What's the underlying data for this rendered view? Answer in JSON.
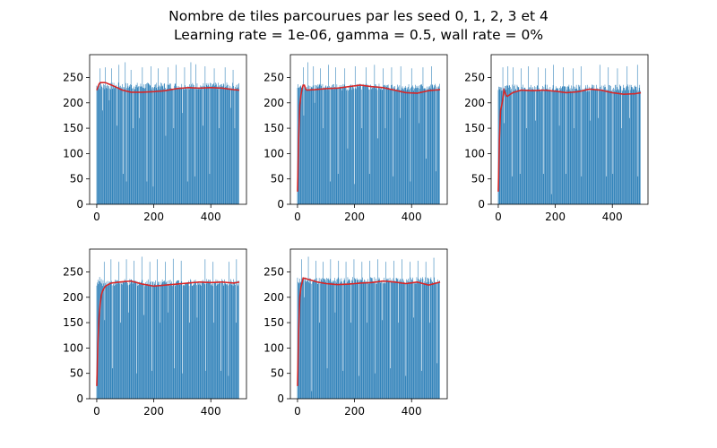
{
  "figure": {
    "title_line1": "Nombre de tiles parcourues par les seed 0, 1, 2, 3 et 4",
    "title_line2": "Learning rate = 1e-06, gamma = 0.5, wall rate = 0%"
  },
  "colors": {
    "bar": "#1f77b4",
    "line": "#d62728",
    "axis": "#000000"
  },
  "chart_data": [
    {
      "type": "bar",
      "seed": 0,
      "xlim": [
        -25,
        525
      ],
      "ylim": [
        0,
        295
      ],
      "xticks": [
        0,
        200,
        400
      ],
      "yticks": [
        0,
        50,
        100,
        150,
        200,
        250
      ],
      "bar_base": 232,
      "dips": [
        [
          20,
          185
        ],
        [
          44,
          205
        ],
        [
          70,
          155
        ],
        [
          92,
          60
        ],
        [
          104,
          45
        ],
        [
          128,
          150
        ],
        [
          150,
          170
        ],
        [
          176,
          45
        ],
        [
          198,
          35
        ],
        [
          242,
          135
        ],
        [
          270,
          150
        ],
        [
          300,
          180
        ],
        [
          318,
          45
        ],
        [
          344,
          55
        ],
        [
          372,
          155
        ],
        [
          396,
          60
        ],
        [
          430,
          150
        ],
        [
          470,
          190
        ],
        [
          484,
          150
        ]
      ],
      "peaks": [
        [
          12,
          268
        ],
        [
          30,
          270
        ],
        [
          52,
          268
        ],
        [
          78,
          275
        ],
        [
          100,
          280
        ],
        [
          120,
          265
        ],
        [
          160,
          270
        ],
        [
          190,
          272
        ],
        [
          216,
          268
        ],
        [
          250,
          270
        ],
        [
          278,
          275
        ],
        [
          308,
          270
        ],
        [
          330,
          280
        ],
        [
          348,
          276
        ],
        [
          380,
          272
        ],
        [
          412,
          268
        ],
        [
          450,
          270
        ],
        [
          478,
          265
        ]
      ],
      "moving_avg": [
        [
          0,
          225
        ],
        [
          10,
          240
        ],
        [
          30,
          240
        ],
        [
          60,
          233
        ],
        [
          90,
          225
        ],
        [
          120,
          221
        ],
        [
          160,
          221
        ],
        [
          200,
          222
        ],
        [
          240,
          224
        ],
        [
          280,
          228
        ],
        [
          320,
          230
        ],
        [
          360,
          229
        ],
        [
          400,
          230
        ],
        [
          440,
          229
        ],
        [
          480,
          226
        ],
        [
          500,
          225
        ]
      ]
    },
    {
      "type": "bar",
      "seed": 1,
      "xlim": [
        -25,
        525
      ],
      "ylim": [
        0,
        295
      ],
      "xticks": [
        0,
        200,
        400
      ],
      "yticks": [
        0,
        50,
        100,
        150,
        200,
        250
      ],
      "bar_base": 230,
      "dips": [
        [
          3,
          20
        ],
        [
          22,
          175
        ],
        [
          60,
          200
        ],
        [
          90,
          150
        ],
        [
          114,
          45
        ],
        [
          142,
          60
        ],
        [
          176,
          110
        ],
        [
          200,
          40
        ],
        [
          226,
          150
        ],
        [
          252,
          60
        ],
        [
          282,
          130
        ],
        [
          308,
          150
        ],
        [
          336,
          55
        ],
        [
          360,
          170
        ],
        [
          396,
          45
        ],
        [
          426,
          160
        ],
        [
          452,
          90
        ],
        [
          486,
          65
        ]
      ],
      "peaks": [
        [
          20,
          270
        ],
        [
          36,
          280
        ],
        [
          56,
          272
        ],
        [
          80,
          268
        ],
        [
          108,
          275
        ],
        [
          134,
          270
        ],
        [
          166,
          268
        ],
        [
          202,
          272
        ],
        [
          240,
          270
        ],
        [
          270,
          275
        ],
        [
          300,
          268
        ],
        [
          330,
          270
        ],
        [
          362,
          272
        ],
        [
          400,
          268
        ],
        [
          440,
          270
        ],
        [
          470,
          272
        ]
      ],
      "moving_avg": [
        [
          0,
          25
        ],
        [
          6,
          185
        ],
        [
          14,
          225
        ],
        [
          22,
          238
        ],
        [
          30,
          225
        ],
        [
          60,
          226
        ],
        [
          100,
          228
        ],
        [
          140,
          229
        ],
        [
          180,
          232
        ],
        [
          220,
          235
        ],
        [
          260,
          232
        ],
        [
          300,
          230
        ],
        [
          340,
          225
        ],
        [
          380,
          220
        ],
        [
          420,
          219
        ],
        [
          460,
          224
        ],
        [
          500,
          226
        ]
      ]
    },
    {
      "type": "bar",
      "seed": 2,
      "xlim": [
        -25,
        525
      ],
      "ylim": [
        0,
        295
      ],
      "xticks": [
        0,
        200,
        400
      ],
      "yticks": [
        0,
        50,
        100,
        150,
        200,
        250
      ],
      "bar_base": 228,
      "dips": [
        [
          3,
          25
        ],
        [
          20,
          160
        ],
        [
          48,
          55
        ],
        [
          76,
          60
        ],
        [
          100,
          150
        ],
        [
          130,
          165
        ],
        [
          158,
          60
        ],
        [
          186,
          20
        ],
        [
          214,
          155
        ],
        [
          238,
          60
        ],
        [
          266,
          150
        ],
        [
          292,
          55
        ],
        [
          322,
          165
        ],
        [
          350,
          170
        ],
        [
          378,
          55
        ],
        [
          402,
          60
        ],
        [
          432,
          150
        ],
        [
          460,
          170
        ],
        [
          490,
          55
        ]
      ],
      "peaks": [
        [
          16,
          270
        ],
        [
          34,
          272
        ],
        [
          52,
          270
        ],
        [
          80,
          268
        ],
        [
          106,
          272
        ],
        [
          140,
          270
        ],
        [
          166,
          268
        ],
        [
          194,
          275
        ],
        [
          228,
          270
        ],
        [
          262,
          268
        ],
        [
          290,
          272
        ],
        [
          322,
          270
        ],
        [
          356,
          275
        ],
        [
          386,
          270
        ],
        [
          418,
          268
        ],
        [
          452,
          272
        ],
        [
          488,
          275
        ]
      ],
      "moving_avg": [
        [
          0,
          25
        ],
        [
          6,
          180
        ],
        [
          14,
          200
        ],
        [
          20,
          225
        ],
        [
          30,
          212
        ],
        [
          50,
          220
        ],
        [
          80,
          225
        ],
        [
          120,
          224
        ],
        [
          160,
          225
        ],
        [
          200,
          223
        ],
        [
          240,
          220
        ],
        [
          280,
          222
        ],
        [
          320,
          227
        ],
        [
          360,
          225
        ],
        [
          400,
          220
        ],
        [
          440,
          217
        ],
        [
          480,
          218
        ],
        [
          500,
          220
        ]
      ]
    },
    {
      "type": "bar",
      "seed": 3,
      "xlim": [
        -25,
        525
      ],
      "ylim": [
        0,
        295
      ],
      "xticks": [
        0,
        200,
        400
      ],
      "yticks": [
        0,
        50,
        100,
        150,
        200,
        250
      ],
      "bar_base": 228,
      "dips": [
        [
          3,
          25
        ],
        [
          28,
          155
        ],
        [
          56,
          60
        ],
        [
          84,
          150
        ],
        [
          112,
          170
        ],
        [
          140,
          50
        ],
        [
          166,
          165
        ],
        [
          194,
          55
        ],
        [
          222,
          150
        ],
        [
          250,
          170
        ],
        [
          272,
          60
        ],
        [
          300,
          50
        ],
        [
          326,
          150
        ],
        [
          352,
          160
        ],
        [
          382,
          55
        ],
        [
          410,
          150
        ],
        [
          436,
          55
        ],
        [
          462,
          45
        ],
        [
          488,
          150
        ]
      ],
      "peaks": [
        [
          10,
          240
        ],
        [
          26,
          270
        ],
        [
          50,
          275
        ],
        [
          78,
          270
        ],
        [
          104,
          275
        ],
        [
          130,
          272
        ],
        [
          158,
          280
        ],
        [
          186,
          270
        ],
        [
          212,
          275
        ],
        [
          240,
          270
        ],
        [
          268,
          276
        ],
        [
          296,
          272
        ],
        [
          326,
          270
        ],
        [
          352,
          268
        ],
        [
          380,
          275
        ],
        [
          408,
          270
        ],
        [
          436,
          272
        ],
        [
          464,
          270
        ],
        [
          490,
          275
        ]
      ],
      "moving_avg": [
        [
          0,
          25
        ],
        [
          4,
          110
        ],
        [
          8,
          160
        ],
        [
          14,
          200
        ],
        [
          20,
          212
        ],
        [
          30,
          222
        ],
        [
          50,
          228
        ],
        [
          80,
          230
        ],
        [
          120,
          232
        ],
        [
          160,
          226
        ],
        [
          200,
          222
        ],
        [
          240,
          224
        ],
        [
          280,
          226
        ],
        [
          320,
          228
        ],
        [
          360,
          230
        ],
        [
          400,
          229
        ],
        [
          440,
          230
        ],
        [
          480,
          228
        ],
        [
          500,
          230
        ]
      ]
    },
    {
      "type": "bar",
      "seed": 4,
      "xlim": [
        -25,
        525
      ],
      "ylim": [
        0,
        295
      ],
      "xticks": [
        0,
        200,
        400
      ],
      "yticks": [
        0,
        50,
        100,
        150,
        200,
        250
      ],
      "bar_base": 232,
      "dips": [
        [
          3,
          25
        ],
        [
          24,
          200
        ],
        [
          50,
          15
        ],
        [
          78,
          150
        ],
        [
          104,
          60
        ],
        [
          132,
          170
        ],
        [
          160,
          55
        ],
        [
          188,
          150
        ],
        [
          216,
          45
        ],
        [
          244,
          150
        ],
        [
          272,
          50
        ],
        [
          298,
          155
        ],
        [
          326,
          60
        ],
        [
          354,
          150
        ],
        [
          380,
          45
        ],
        [
          408,
          160
        ],
        [
          436,
          55
        ],
        [
          464,
          150
        ],
        [
          490,
          70
        ]
      ],
      "peaks": [
        [
          14,
          275
        ],
        [
          38,
          280
        ],
        [
          64,
          272
        ],
        [
          90,
          270
        ],
        [
          116,
          275
        ],
        [
          144,
          272
        ],
        [
          170,
          270
        ],
        [
          198,
          275
        ],
        [
          226,
          270
        ],
        [
          254,
          272
        ],
        [
          282,
          275
        ],
        [
          310,
          270
        ],
        [
          338,
          272
        ],
        [
          366,
          275
        ],
        [
          394,
          270
        ],
        [
          422,
          272
        ],
        [
          450,
          270
        ],
        [
          478,
          278
        ]
      ],
      "moving_avg": [
        [
          0,
          25
        ],
        [
          6,
          190
        ],
        [
          12,
          220
        ],
        [
          20,
          238
        ],
        [
          40,
          235
        ],
        [
          70,
          230
        ],
        [
          100,
          227
        ],
        [
          140,
          225
        ],
        [
          180,
          226
        ],
        [
          220,
          228
        ],
        [
          260,
          229
        ],
        [
          300,
          232
        ],
        [
          340,
          230
        ],
        [
          380,
          227
        ],
        [
          420,
          230
        ],
        [
          460,
          224
        ],
        [
          500,
          230
        ]
      ]
    }
  ]
}
